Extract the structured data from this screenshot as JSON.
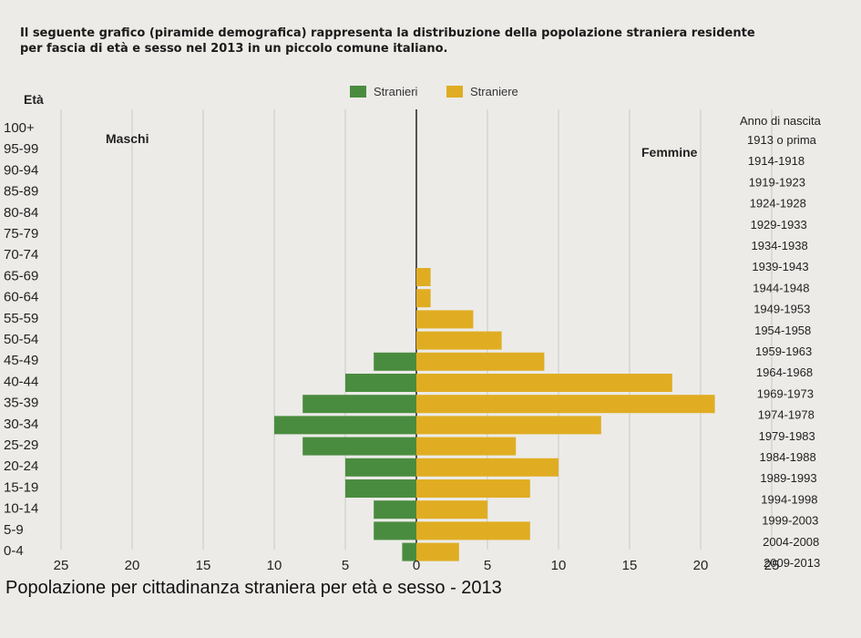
{
  "intro": {
    "line1": "Il seguente grafico (piramide demografica) rappresenta la distribuzione della popolazione straniera residente",
    "line2": "per fascia di età e sesso nel 2013 in un piccolo comune italiano."
  },
  "caption": "Popolazione per cittadinanza straniera per età e sesso - 2013",
  "chart_data": {
    "type": "bar",
    "orientation": "horizontal-pyramid",
    "age_axis_title": "Età",
    "birth_axis_title": "Anno di nascita",
    "left_label": "Maschi",
    "right_label": "Femmine",
    "legend": [
      {
        "name": "Stranieri",
        "color": "#4a8c3f"
      },
      {
        "name": "Straniere",
        "color": "#e0ad22"
      }
    ],
    "age_groups": [
      "100+",
      "95-99",
      "90-94",
      "85-89",
      "80-84",
      "75-79",
      "70-74",
      "65-69",
      "60-64",
      "55-59",
      "50-54",
      "45-49",
      "40-44",
      "35-39",
      "30-34",
      "25-29",
      "20-24",
      "15-19",
      "10-14",
      "5-9",
      "0-4"
    ],
    "birth_years": [
      "1913 o prima",
      "1914-1918",
      "1919-1923",
      "1924-1928",
      "1929-1933",
      "1934-1938",
      "1939-1943",
      "1944-1948",
      "1949-1953",
      "1954-1958",
      "1959-1963",
      "1964-1968",
      "1969-1973",
      "1974-1978",
      "1979-1983",
      "1984-1988",
      "1989-1993",
      "1994-1998",
      "1999-2003",
      "2004-2008",
      "2009-2013"
    ],
    "series": [
      {
        "name": "Stranieri",
        "values": [
          0,
          0,
          0,
          0,
          0,
          0,
          0,
          0,
          0,
          0,
          0,
          3,
          5,
          8,
          10,
          8,
          5,
          5,
          3,
          3,
          1
        ]
      },
      {
        "name": "Straniere",
        "values": [
          0,
          0,
          0,
          0,
          0,
          0,
          0,
          1,
          1,
          4,
          6,
          9,
          18,
          21,
          13,
          7,
          10,
          8,
          5,
          8,
          3
        ]
      }
    ],
    "x_ticks": [
      "25",
      "20",
      "15",
      "10",
      "5",
      "0",
      "5",
      "10",
      "15",
      "20",
      "25"
    ],
    "xlim": [
      -25,
      25
    ],
    "grid": true
  }
}
